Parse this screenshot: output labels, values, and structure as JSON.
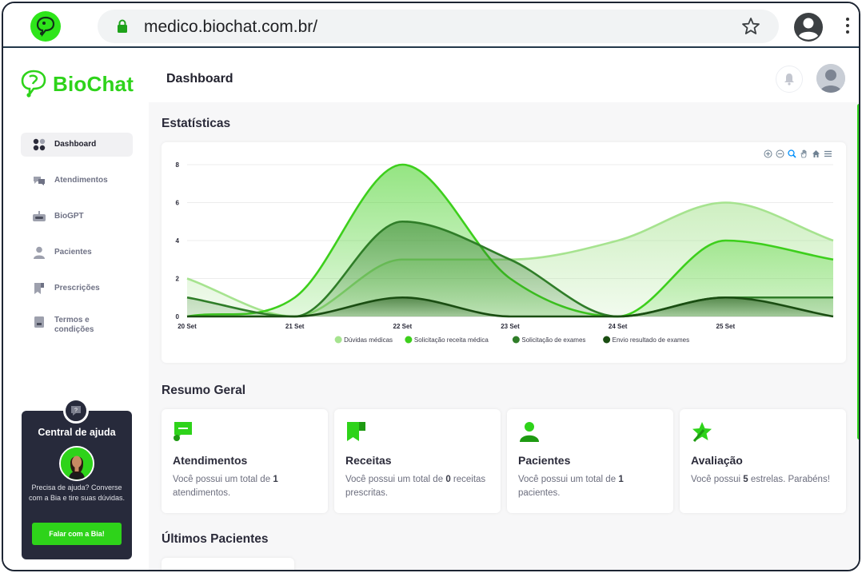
{
  "browser": {
    "url": "medico.biochat.com.br/"
  },
  "app": {
    "logo_text": "BioChat",
    "brand_color": "#2ed31a"
  },
  "sidebar": {
    "items": [
      {
        "label": "Dashboard",
        "icon": "dashboard-icon",
        "active": true
      },
      {
        "label": "Atendimentos",
        "icon": "chat-bubbles-icon",
        "active": false
      },
      {
        "label": "BioGPT",
        "icon": "robot-icon",
        "active": false
      },
      {
        "label": "Pacientes",
        "icon": "person-icon",
        "active": false
      },
      {
        "label": "Prescrições",
        "icon": "prescription-icon",
        "active": false
      },
      {
        "label": "Termos e condições",
        "icon": "document-icon",
        "active": false
      }
    ]
  },
  "help": {
    "title": "Central de ajuda",
    "text": "Precisa de ajuda? Converse com a Bia e tire suas dúvidas.",
    "button_label": "Falar com a Bia!"
  },
  "header": {
    "title": "Dashboard"
  },
  "stats": {
    "title": "Estatísticas"
  },
  "chart_data": {
    "type": "area",
    "categories": [
      "20 Set",
      "21 Set",
      "22 Set",
      "23 Set",
      "24 Set",
      "25 Set",
      ""
    ],
    "ylim": [
      0,
      8
    ],
    "yticks": [
      0,
      2,
      4,
      6,
      8
    ],
    "grid": true,
    "legend_position": "bottom",
    "series": [
      {
        "name": "Dúvidas médicas",
        "color": "#a6e38f",
        "values": [
          2,
          0,
          3,
          3,
          4,
          6,
          4
        ]
      },
      {
        "name": "Solicitação receita médica",
        "color": "#3dcf1c",
        "values": [
          0,
          1,
          8,
          2,
          0,
          4,
          3
        ]
      },
      {
        "name": "Solicitação de exames",
        "color": "#2f7d28",
        "values": [
          1,
          0,
          5,
          3,
          0,
          1,
          1
        ]
      },
      {
        "name": "Envio resultado de exames",
        "color": "#1a4d12",
        "values": [
          0,
          0,
          1,
          0,
          0,
          1,
          0
        ]
      }
    ]
  },
  "summary": {
    "title": "Resumo Geral",
    "cards": [
      {
        "title": "Atendimentos",
        "prefix": "Você possui um total de ",
        "value": "1",
        "suffix": " atendimentos.",
        "icon": "chat-icon"
      },
      {
        "title": "Receitas",
        "prefix": "Você possui um total de ",
        "value": "0",
        "suffix": " receitas prescritas.",
        "icon": "prescription-icon"
      },
      {
        "title": "Pacientes",
        "prefix": "Você possui um total de ",
        "value": "1",
        "suffix": " pacientes.",
        "icon": "person-icon"
      },
      {
        "title": "Avaliação",
        "prefix": "Você possui ",
        "value": "5",
        "suffix": " estrelas. Parabéns!",
        "icon": "star-icon"
      }
    ]
  },
  "recent": {
    "title": "Últimos Pacientes"
  }
}
